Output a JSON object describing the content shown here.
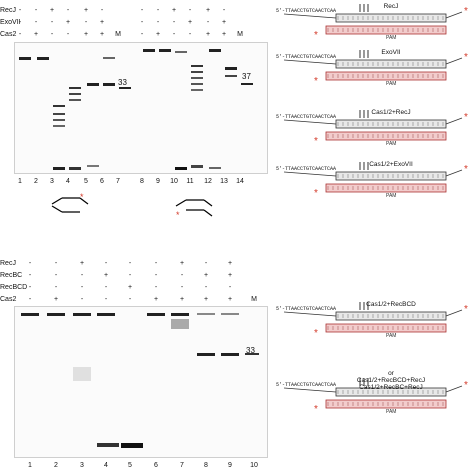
{
  "panel_top": {
    "conditions": [
      {
        "label": "RecJ",
        "row": [
          "-",
          "-",
          "+",
          "-",
          "+",
          "-",
          "",
          "-",
          "-",
          "+",
          "-",
          "+",
          "-",
          ""
        ]
      },
      {
        "label": "ExoVII",
        "row": [
          "-",
          "-",
          "-",
          "+",
          "-",
          "+",
          "",
          "-",
          "-",
          "-",
          "+",
          "-",
          "+",
          ""
        ]
      },
      {
        "label": "Cas2",
        "row": [
          "-",
          "+",
          "-",
          "-",
          "+",
          "+",
          "M",
          "-",
          "+",
          "-",
          "-",
          "+",
          "+",
          "M"
        ]
      }
    ],
    "lane_numbers": [
      "1",
      "2",
      "3",
      "4",
      "5",
      "6",
      "7",
      "8",
      "9",
      "10",
      "11",
      "12",
      "13",
      "14"
    ],
    "size_labels": [
      "33",
      "37"
    ]
  },
  "panel_bottom": {
    "conditions": [
      {
        "label": "RecJ",
        "row": [
          "-",
          "-",
          "+",
          "-",
          "-",
          "-",
          "+",
          "-",
          "+",
          ""
        ]
      },
      {
        "label": "RecBC",
        "row": [
          "-",
          "-",
          "-",
          "+",
          "-",
          "-",
          "-",
          "+",
          "+",
          ""
        ]
      },
      {
        "label": "RecBCD",
        "row": [
          "-",
          "-",
          "-",
          "-",
          "+",
          "-",
          "-",
          "-",
          "-",
          ""
        ]
      },
      {
        "label": "Cas2",
        "row": [
          "-",
          "+",
          "-",
          "-",
          "-",
          "+",
          "+",
          "+",
          "+",
          "M"
        ]
      }
    ],
    "lane_numbers": [
      "1",
      "2",
      "3",
      "4",
      "5",
      "6",
      "7",
      "8",
      "9",
      "10"
    ],
    "size_labels": [
      "33"
    ]
  },
  "diagrams_top": [
    {
      "label": "RecJ",
      "pam": "PAM"
    },
    {
      "label": "ExoVII",
      "pam": "PAM"
    },
    {
      "label": "Cas1/2+RecJ",
      "pam": "PAM"
    },
    {
      "label": "Cas1/2+ExoVII",
      "pam": "PAM"
    }
  ],
  "diagrams_bottom": [
    {
      "label": "Cas1/2+RecBCD",
      "pam": "PAM"
    },
    {
      "label": "Cas1/2+RecBCD+RecJ",
      "label_or": "or",
      "label2": "Cas1/2+RecBC+RecJ",
      "pam": "PAM"
    }
  ],
  "sequence_fragments": {
    "top5": "5'-TTAACCTGTCAACTCAA",
    "top3": "3'",
    "bottom3": "3'",
    "bottom5": "5'",
    "b5": "5'-CCGCTTAACCTGTCAACT",
    "b3": "3'-GGCGAATTGGACAGTTGA"
  },
  "colors": {
    "accent_red": "#d33a2a",
    "band": "#1a1a1a"
  }
}
